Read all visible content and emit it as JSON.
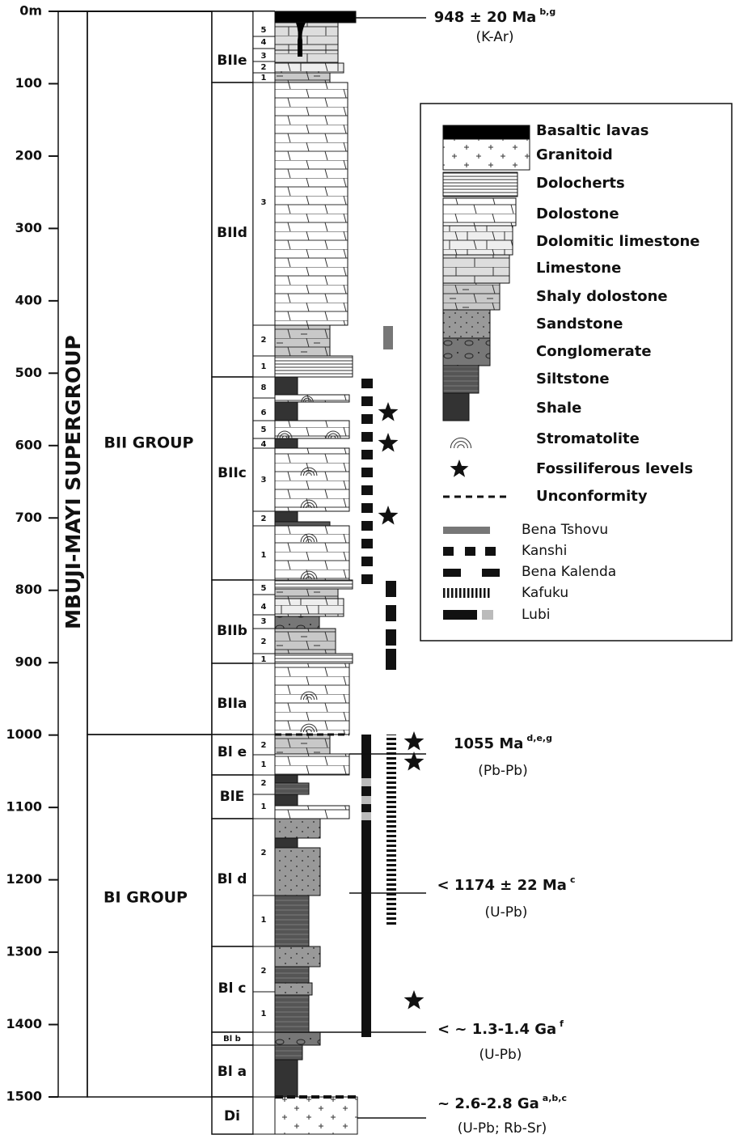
{
  "depth_scale": [
    "0m",
    "100",
    "200",
    "300",
    "400",
    "500",
    "600",
    "700",
    "800",
    "900",
    "1000",
    "1100",
    "1200",
    "1300",
    "1400",
    "1500"
  ],
  "supergroup": "MBUJI-MAYI SUPERGROUP",
  "groups": [
    "BII  GROUP",
    "BI  GROUP"
  ],
  "subgroups": [
    {
      "name": "BIIe",
      "beds": [
        "5",
        "4",
        "3",
        "2",
        "1"
      ]
    },
    {
      "name": "BIId",
      "beds": [
        "3",
        "2",
        "1"
      ]
    },
    {
      "name": "BIIc",
      "beds": [
        "8",
        "6",
        "5",
        "4",
        "3",
        "2",
        "1"
      ]
    },
    {
      "name": "BIIb",
      "beds": [
        "5",
        "4",
        "3",
        "2",
        "1"
      ]
    },
    {
      "name": "BIIa",
      "beds": []
    },
    {
      "name": "Bl e",
      "beds": [
        "2",
        "1"
      ]
    },
    {
      "name": "BlE",
      "beds": [
        "2",
        "1"
      ]
    },
    {
      "name": "Bl d",
      "beds": [
        "2",
        "1"
      ]
    },
    {
      "name": "Bl c",
      "beds": [
        "2",
        "1"
      ]
    },
    {
      "name": "Bl b",
      "beds": []
    },
    {
      "name": "Bl a",
      "beds": []
    },
    {
      "name": "Di",
      "beds": []
    }
  ],
  "ages": [
    {
      "age": "948 ± 20 Ma",
      "refs": "b,g",
      "method": "(K-Ar)"
    },
    {
      "age": "1055 Ma",
      "refs": "d,e,g",
      "method": "(Pb-Pb)"
    },
    {
      "age": "< 1174 ± 22 Ma",
      "refs": "c",
      "method": "(U-Pb)"
    },
    {
      "age": "< ~ 1.3-1.4 Ga",
      "refs": "f",
      "method": "(U-Pb)"
    },
    {
      "age": "~ 2.6-2.8 Ga",
      "refs": "a,b,c",
      "method": "(U-Pb; Rb-Sr)"
    }
  ],
  "legend": {
    "lithologies": [
      "Basaltic lavas",
      "Granitoid",
      "Dolocherts",
      "Dolostone",
      "Dolomitic limestone",
      "Limestone",
      "Shaly dolostone",
      "Sandstone",
      "Conglomerate",
      "Siltstone",
      "Shale",
      "Stromatolite",
      "Fossiliferous levels",
      "Unconformity"
    ],
    "formations": [
      "Bena Tshovu",
      "Kanshi",
      "Bena Kalenda",
      "Kafuku",
      "Lubi"
    ]
  }
}
